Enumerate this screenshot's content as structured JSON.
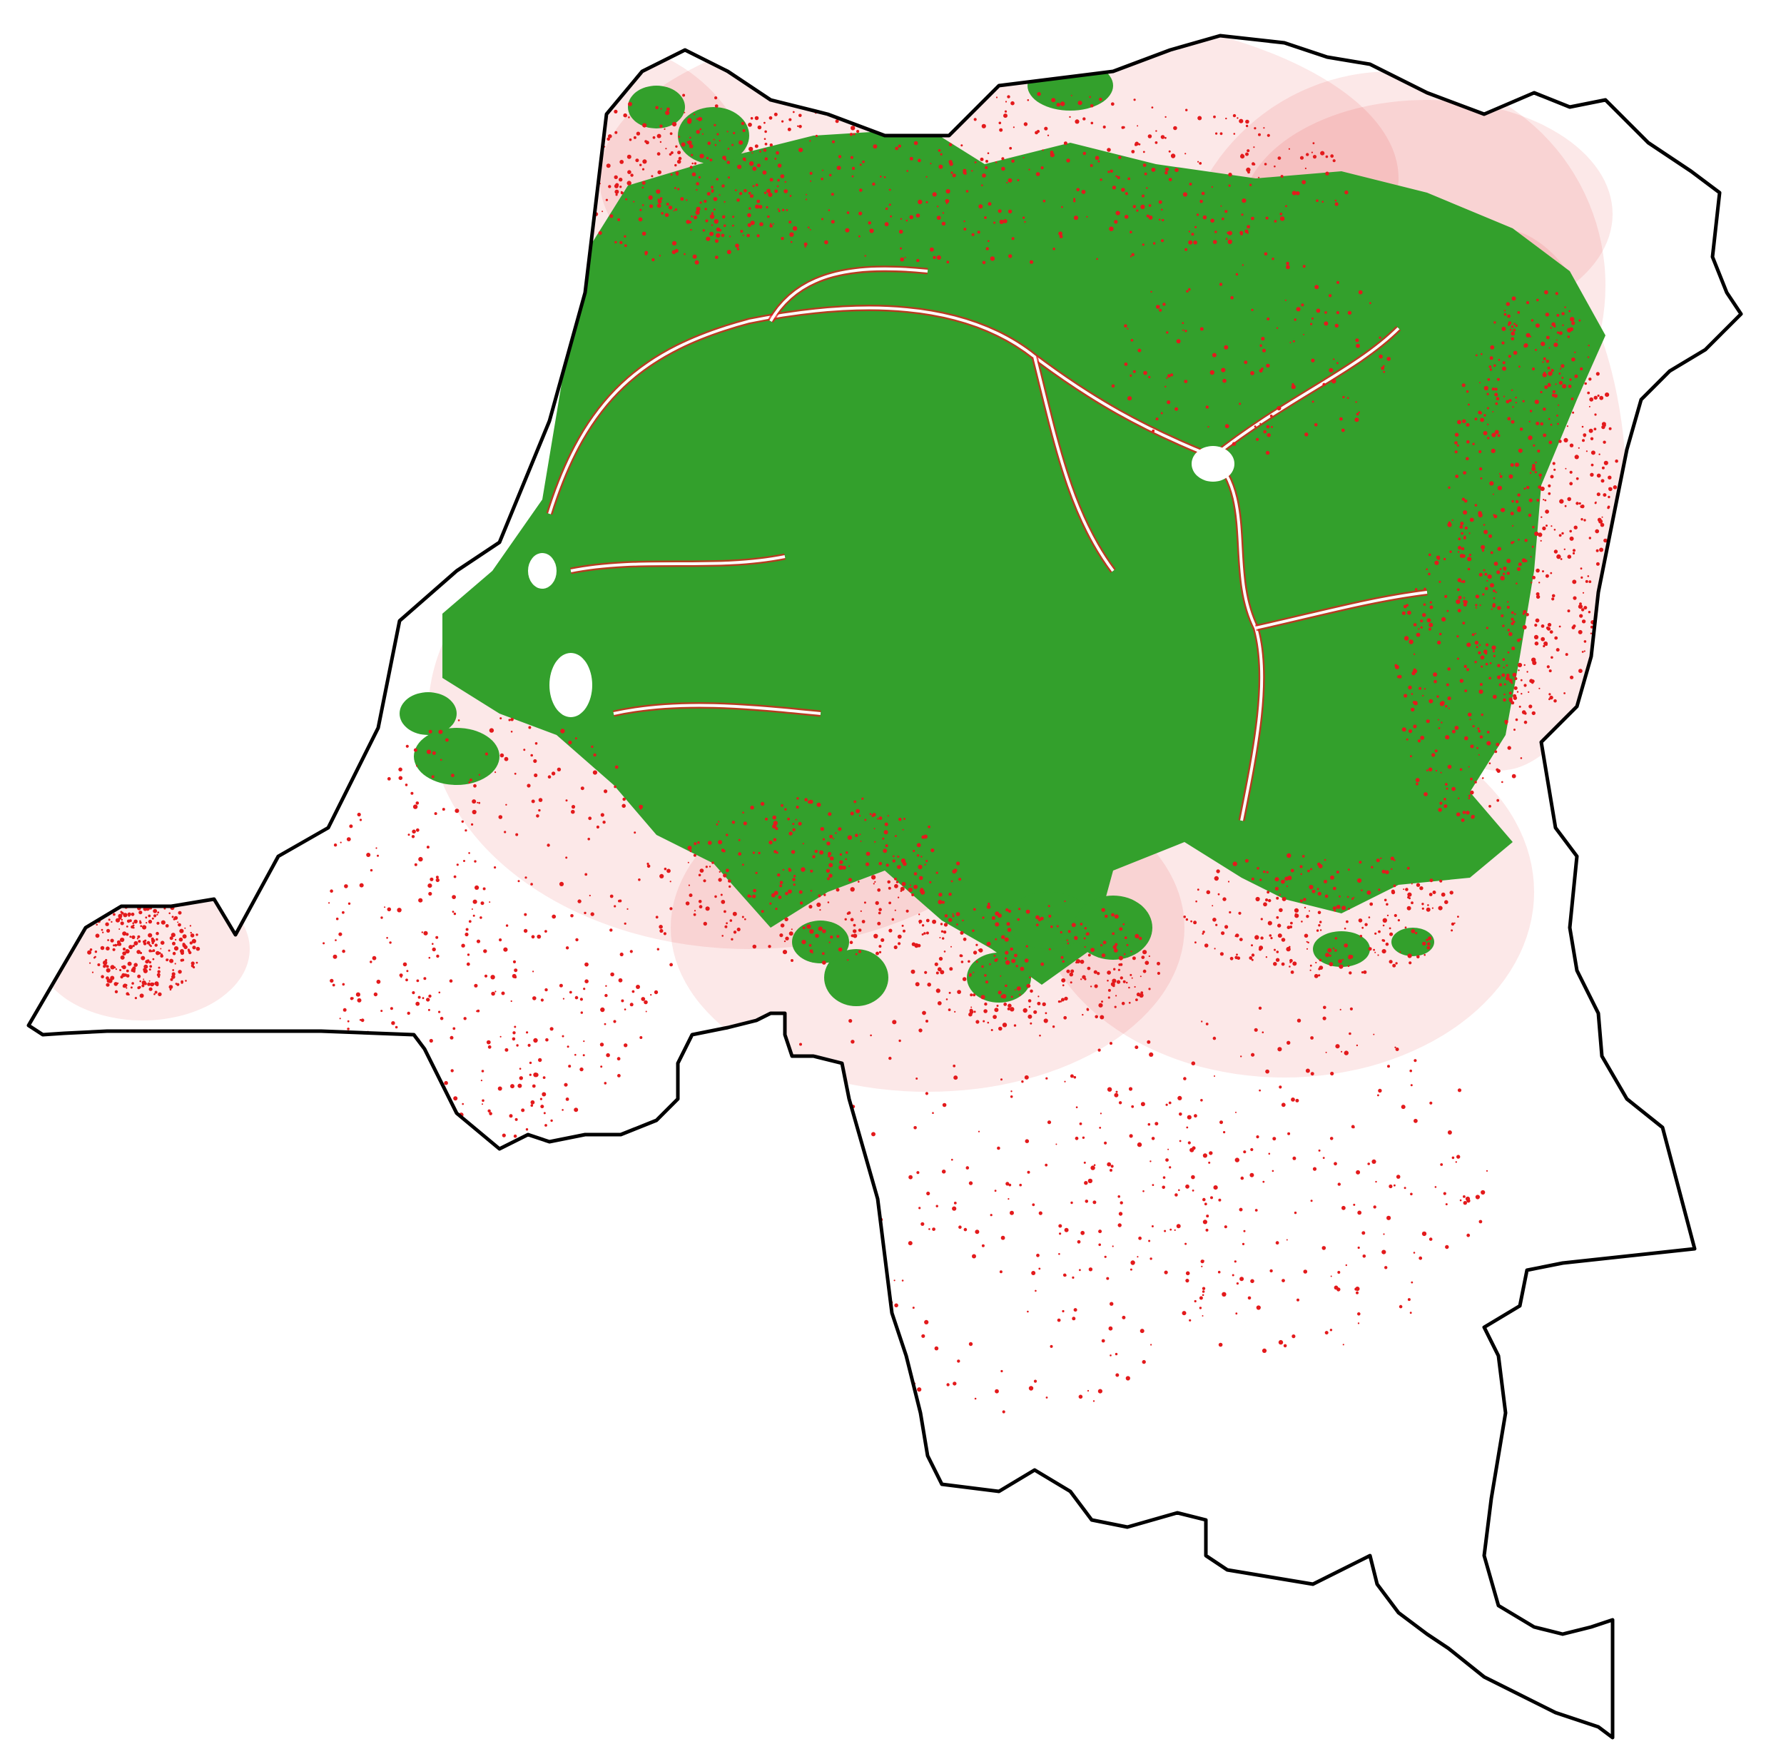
{
  "map": {
    "colors": {
      "background": "#ffffff",
      "boundary": "#000000",
      "forest": "#33a02c",
      "loss": "#e31a1c"
    }
  }
}
